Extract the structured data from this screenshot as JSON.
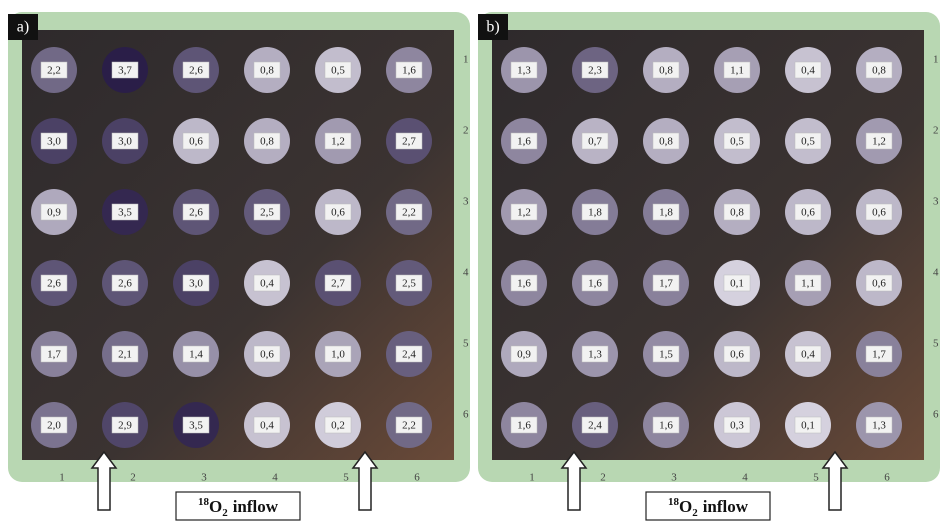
{
  "panels": [
    {
      "label": "a)",
      "grid": [
        [
          "2,2",
          "3,7",
          "2,6",
          "0,8",
          "0,5",
          "1,6"
        ],
        [
          "3,0",
          "3,0",
          "0,6",
          "0,8",
          "1,2",
          "2,7"
        ],
        [
          "0,9",
          "3,5",
          "2,6",
          "2,5",
          "0,6",
          "2,2"
        ],
        [
          "2,6",
          "2,6",
          "3,0",
          "0,4",
          "2,7",
          "2,5"
        ],
        [
          "1,7",
          "2,1",
          "1,4",
          "0,6",
          "1,0",
          "2,4"
        ],
        [
          "2,0",
          "2,9",
          "3,5",
          "0,4",
          "0,2",
          "2,2"
        ]
      ],
      "rows": [
        "1",
        "2",
        "3",
        "4",
        "5",
        "6"
      ],
      "columns": [
        "1",
        "2",
        "3",
        "4",
        "5",
        "6"
      ],
      "caption": {
        "mass": "18",
        "element": "O",
        "count": "2",
        "rest": "inflow"
      }
    },
    {
      "label": "b)",
      "grid": [
        [
          "1,3",
          "2,3",
          "0,8",
          "1,1",
          "0,4",
          "0,8"
        ],
        [
          "1,6",
          "0,7",
          "0,8",
          "0,5",
          "0,5",
          "1,2"
        ],
        [
          "1,2",
          "1,8",
          "1,8",
          "0,8",
          "0,6",
          "0,6"
        ],
        [
          "1,6",
          "1,6",
          "1,7",
          "0,1",
          "1,1",
          "0,6"
        ],
        [
          "0,9",
          "1,3",
          "1,5",
          "0,6",
          "0,4",
          "1,7"
        ],
        [
          "1,6",
          "2,4",
          "1,6",
          "0,3",
          "0,1",
          "1,3"
        ]
      ],
      "rows": [
        "1",
        "2",
        "3",
        "4",
        "5",
        "6"
      ],
      "columns": [
        "1",
        "2",
        "3",
        "4",
        "5",
        "6"
      ],
      "caption": {
        "mass": "18",
        "element": "O",
        "count": "2",
        "rest": "inflow"
      }
    }
  ]
}
